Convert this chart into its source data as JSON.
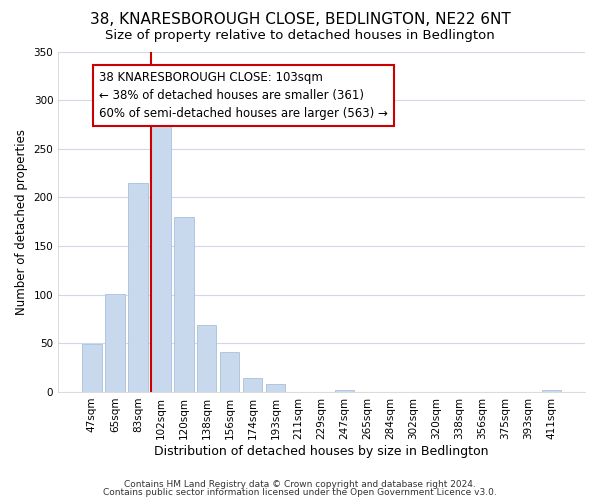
{
  "title": "38, KNARESBOROUGH CLOSE, BEDLINGTON, NE22 6NT",
  "subtitle": "Size of property relative to detached houses in Bedlington",
  "xlabel": "Distribution of detached houses by size in Bedlington",
  "ylabel": "Number of detached properties",
  "bar_labels": [
    "47sqm",
    "65sqm",
    "83sqm",
    "102sqm",
    "120sqm",
    "138sqm",
    "156sqm",
    "174sqm",
    "193sqm",
    "211sqm",
    "229sqm",
    "247sqm",
    "265sqm",
    "284sqm",
    "302sqm",
    "320sqm",
    "338sqm",
    "356sqm",
    "375sqm",
    "393sqm",
    "411sqm"
  ],
  "bar_values": [
    49,
    101,
    215,
    274,
    180,
    69,
    41,
    14,
    8,
    0,
    0,
    2,
    0,
    0,
    0,
    0,
    0,
    0,
    0,
    0,
    2
  ],
  "bar_color": "#c8d9ed",
  "bar_edge_color": "#a8c0dc",
  "vline_color": "#cc0000",
  "annotation_title": "38 KNARESBOROUGH CLOSE: 103sqm",
  "annotation_line1": "← 38% of detached houses are smaller (361)",
  "annotation_line2": "60% of semi-detached houses are larger (563) →",
  "annotation_box_color": "#ffffff",
  "annotation_box_edge": "#cc0000",
  "ylim": [
    0,
    350
  ],
  "yticks": [
    0,
    50,
    100,
    150,
    200,
    250,
    300,
    350
  ],
  "footer1": "Contains HM Land Registry data © Crown copyright and database right 2024.",
  "footer2": "Contains public sector information licensed under the Open Government Licence v3.0.",
  "background_color": "#ffffff",
  "grid_color": "#d0d8ec",
  "title_fontsize": 11,
  "subtitle_fontsize": 9.5,
  "tick_fontsize": 7.5,
  "ylabel_fontsize": 8.5,
  "xlabel_fontsize": 9,
  "annotation_fontsize": 8.5
}
